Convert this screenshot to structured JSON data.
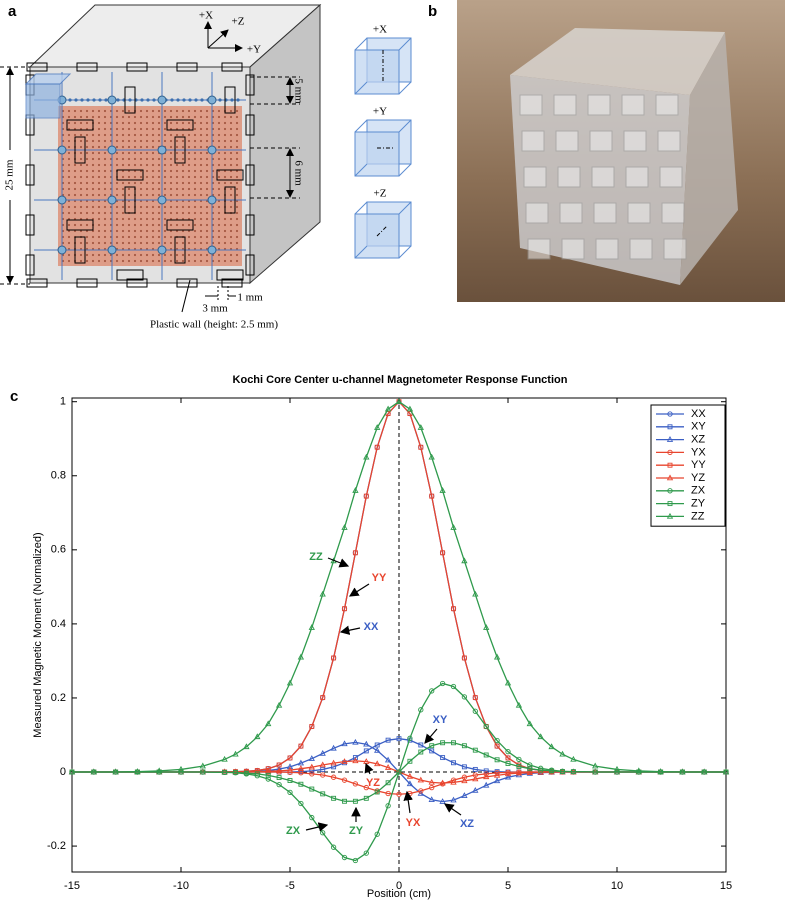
{
  "panel_a": {
    "label": "a",
    "axes": [
      "+X",
      "+Z",
      "+Y"
    ],
    "dimensions": [
      "5 mm",
      "6 mm",
      "25 mm",
      "3 mm",
      "1 mm"
    ],
    "wall_note": "Plastic wall (height: 2.5 mm)",
    "orientation_cubes": [
      "+X",
      "+Y",
      "+Z"
    ]
  },
  "panel_b": {
    "label": "b"
  },
  "chart_data": {
    "type": "line",
    "panel_label": "c",
    "title": "Kochi Core Center u-channel Magnetometer Response Function",
    "xlabel": "Position (cm)",
    "ylabel": "Measured Magnetic Moment (Normalized)",
    "x": [
      -15,
      -14,
      -13,
      -12,
      -11,
      -10,
      -9,
      -8,
      -7.5,
      -7,
      -6.5,
      -6,
      -5.5,
      -5,
      -4.5,
      -4,
      -3.5,
      -3,
      -2.5,
      -2,
      -1.5,
      -1,
      -0.5,
      0,
      0.5,
      1,
      1.5,
      2,
      2.5,
      3,
      3.5,
      4,
      4.5,
      5,
      5.5,
      6,
      6.5,
      7,
      7.5,
      8,
      9,
      10,
      11,
      12,
      13,
      14,
      15
    ],
    "xlim": [
      -15,
      15
    ],
    "xticks": [
      -15,
      -10,
      -5,
      0,
      5,
      10,
      15
    ],
    "ylim": [
      -0.27,
      1.01
    ],
    "yticks": [
      -0.2,
      0,
      0.2,
      0.4,
      0.6,
      0.8,
      1
    ],
    "grid": false,
    "zero_lines": true,
    "legend": "upper right",
    "series": [
      {
        "name": "XX",
        "color": "#3b5fc4",
        "marker": "circle",
        "values": [
          0,
          0,
          0,
          0,
          0,
          0,
          0,
          0,
          0.001,
          0.002,
          0.004,
          0.009,
          0.019,
          0.038,
          0.07,
          0.123,
          0.201,
          0.308,
          0.441,
          0.592,
          0.745,
          0.877,
          0.968,
          1,
          0.968,
          0.877,
          0.745,
          0.592,
          0.441,
          0.308,
          0.201,
          0.123,
          0.07,
          0.038,
          0.019,
          0.009,
          0.004,
          0.002,
          0.001,
          0,
          0,
          0,
          0,
          0,
          0,
          0,
          0
        ]
      },
      {
        "name": "XY",
        "color": "#3b5fc4",
        "marker": "square",
        "values": [
          0,
          0,
          0,
          0,
          0,
          0,
          0,
          0,
          0,
          0,
          0,
          0,
          0,
          0,
          0.001,
          0.003,
          0.007,
          0.014,
          0.025,
          0.039,
          0.057,
          0.073,
          0.086,
          0.09,
          0.086,
          0.073,
          0.057,
          0.039,
          0.025,
          0.014,
          0.007,
          0.003,
          0.001,
          0,
          0,
          0,
          0,
          0,
          0,
          0,
          0,
          0,
          0,
          0,
          0,
          0,
          0
        ]
      },
      {
        "name": "XZ",
        "color": "#3b5fc4",
        "marker": "triangle",
        "values": [
          0,
          0,
          0,
          0,
          0,
          0,
          0,
          0,
          0,
          0.001,
          0.002,
          0.004,
          0.008,
          0.014,
          0.024,
          0.036,
          0.05,
          0.064,
          0.076,
          0.08,
          0.075,
          0.058,
          0.032,
          0,
          -0.032,
          -0.058,
          -0.075,
          -0.08,
          -0.076,
          -0.064,
          -0.05,
          -0.036,
          -0.024,
          -0.014,
          -0.008,
          -0.004,
          -0.002,
          -0.001,
          0,
          0,
          0,
          0,
          0,
          0,
          0,
          0,
          0
        ]
      },
      {
        "name": "YX",
        "color": "#e8452e",
        "marker": "circle",
        "values": [
          0,
          0,
          0,
          0,
          0,
          0,
          0,
          0,
          0,
          0,
          0,
          0,
          0,
          -0.001,
          -0.002,
          -0.005,
          -0.008,
          -0.014,
          -0.022,
          -0.032,
          -0.042,
          -0.051,
          -0.058,
          -0.06,
          -0.058,
          -0.051,
          -0.042,
          -0.032,
          -0.022,
          -0.014,
          -0.008,
          -0.005,
          -0.002,
          -0.001,
          0,
          0,
          0,
          0,
          0,
          0,
          0,
          0,
          0,
          0,
          0,
          0,
          0
        ]
      },
      {
        "name": "YY",
        "color": "#e8452e",
        "marker": "square",
        "values": [
          0,
          0,
          0,
          0,
          0,
          0,
          0,
          0,
          0.001,
          0.002,
          0.004,
          0.009,
          0.019,
          0.038,
          0.07,
          0.123,
          0.201,
          0.308,
          0.441,
          0.592,
          0.745,
          0.877,
          0.968,
          1,
          0.968,
          0.877,
          0.745,
          0.592,
          0.441,
          0.308,
          0.201,
          0.123,
          0.07,
          0.038,
          0.019,
          0.009,
          0.004,
          0.002,
          0.001,
          0,
          0,
          0,
          0,
          0,
          0,
          0,
          0
        ]
      },
      {
        "name": "YZ",
        "color": "#e8452e",
        "marker": "triangle",
        "values": [
          0,
          0,
          0,
          0,
          0,
          0,
          0,
          0,
          0,
          0,
          0.001,
          0.002,
          0.003,
          0.005,
          0.009,
          0.013,
          0.019,
          0.024,
          0.028,
          0.03,
          0.028,
          0.022,
          0.012,
          0,
          -0.012,
          -0.022,
          -0.028,
          -0.03,
          -0.028,
          -0.024,
          -0.019,
          -0.013,
          -0.009,
          -0.005,
          -0.003,
          -0.002,
          -0.001,
          0,
          0,
          0,
          0,
          0,
          0,
          0,
          0,
          0,
          0
        ]
      },
      {
        "name": "ZX",
        "color": "#2f9a4c",
        "marker": "circle",
        "values": [
          0,
          0,
          0,
          0,
          0,
          0,
          0,
          -0.001,
          -0.002,
          -0.005,
          -0.01,
          -0.019,
          -0.034,
          -0.055,
          -0.085,
          -0.123,
          -0.164,
          -0.203,
          -0.231,
          -0.239,
          -0.219,
          -0.168,
          -0.091,
          0,
          0.091,
          0.168,
          0.219,
          0.239,
          0.231,
          0.203,
          0.164,
          0.123,
          0.085,
          0.055,
          0.034,
          0.019,
          0.01,
          0.005,
          0.002,
          0.001,
          0,
          0,
          0,
          0,
          0,
          0,
          0
        ]
      },
      {
        "name": "ZY",
        "color": "#2f9a4c",
        "marker": "square",
        "values": [
          0,
          0,
          0,
          0,
          0,
          0,
          0,
          -0.001,
          -0.001,
          -0.003,
          -0.005,
          -0.009,
          -0.015,
          -0.023,
          -0.033,
          -0.046,
          -0.059,
          -0.071,
          -0.079,
          -0.079,
          -0.071,
          -0.054,
          -0.029,
          0,
          0.029,
          0.054,
          0.071,
          0.079,
          0.079,
          0.071,
          0.059,
          0.046,
          0.033,
          0.023,
          0.015,
          0.009,
          0.005,
          0.003,
          0.001,
          0.001,
          0,
          0,
          0,
          0,
          0,
          0,
          0
        ]
      },
      {
        "name": "ZZ",
        "color": "#2f9a4c",
        "marker": "triangle",
        "values": [
          0,
          0,
          0,
          0.001,
          0.003,
          0.007,
          0.016,
          0.034,
          0.048,
          0.068,
          0.095,
          0.13,
          0.18,
          0.24,
          0.31,
          0.39,
          0.48,
          0.57,
          0.66,
          0.76,
          0.85,
          0.93,
          0.98,
          1,
          0.98,
          0.93,
          0.85,
          0.76,
          0.66,
          0.57,
          0.48,
          0.39,
          0.31,
          0.24,
          0.18,
          0.13,
          0.095,
          0.068,
          0.048,
          0.034,
          0.016,
          0.007,
          0.003,
          0.001,
          0,
          0,
          0
        ]
      }
    ],
    "annotations": [
      "ZZ",
      "YY",
      "XX",
      "XY",
      "XZ",
      "YX",
      "YZ",
      "ZX",
      "ZY"
    ]
  }
}
